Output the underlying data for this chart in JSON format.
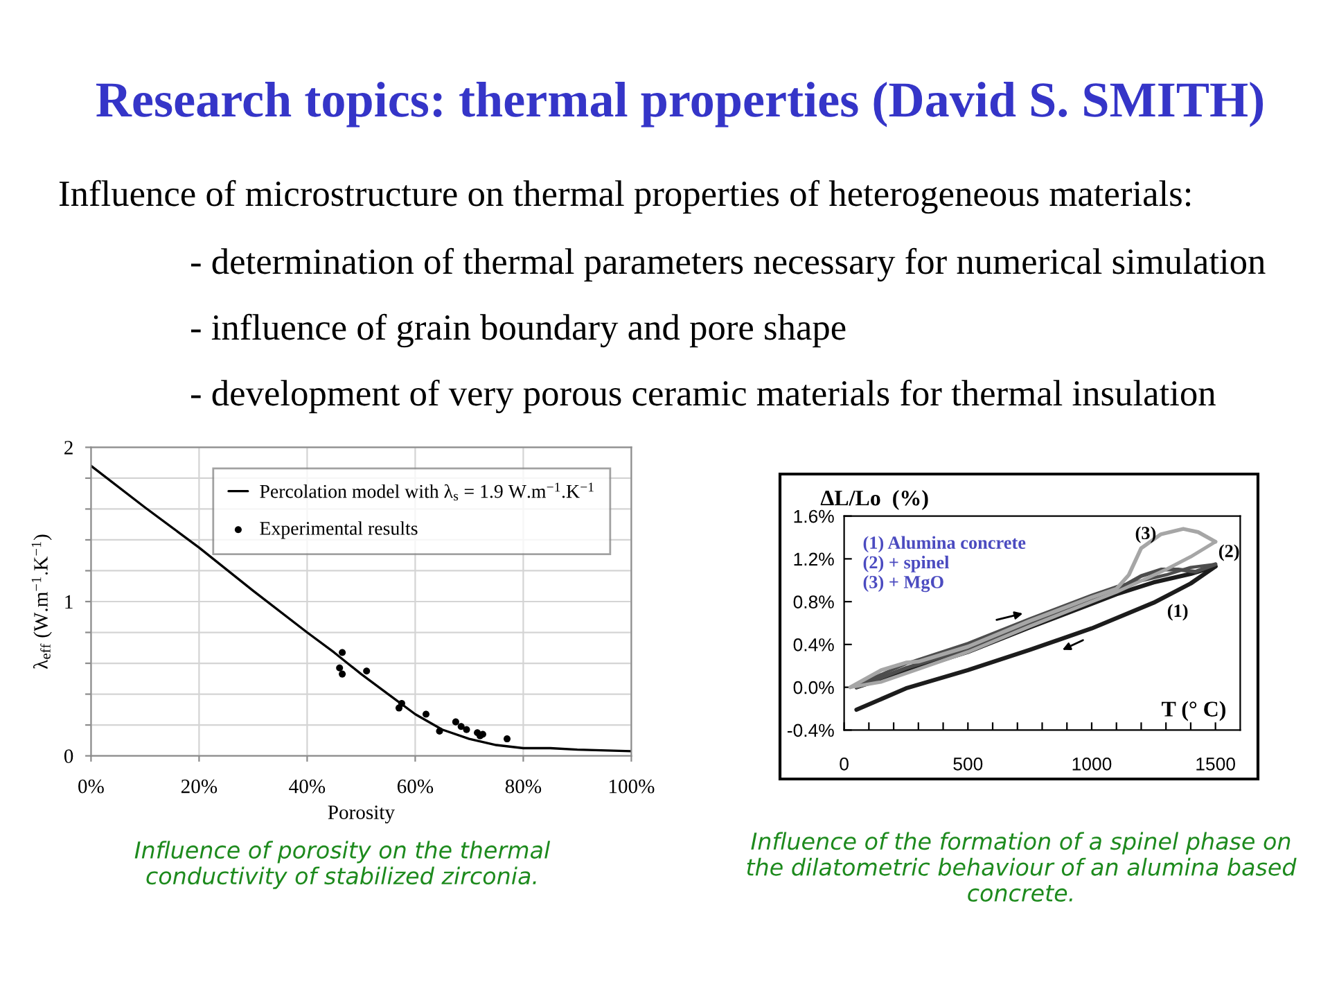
{
  "chart_data": [
    {
      "type": "line",
      "title": "Research topics: thermal properties (David S. SMITH)",
      "xlabel": "Porosity",
      "ylabel": "λ$_{eff}$ (W.m$^{−1}$.K$^{−1}$)",
      "annotations": [
        "Influence of microstructure on thermal properties of heterogeneous materials:",
        "- determination of thermal parameters necessary for numerical simulation",
        "- influence of grain boundary and pore shape",
        "- development of very porous ceramic materials for thermal insulation",
        "Influence of porosity on the thermal\nconductivity of stabilized zirconia."
      ],
      "series": [
        {
          "name": "Percolation model with λ$_{s}$ = 1.9 W.m$^{−1}$.K$^{−1}$",
          "type": "line",
          "color": "#000000",
          "x": [
            0,
            10,
            20,
            30,
            40,
            45,
            50,
            55,
            60,
            65,
            70,
            75,
            80,
            85,
            90,
            100
          ],
          "values": [
            1.88,
            1.61,
            1.35,
            1.07,
            0.8,
            0.67,
            0.53,
            0.4,
            0.27,
            0.17,
            0.11,
            0.07,
            0.05,
            0.05,
            0.04,
            0.03
          ]
        },
        {
          "name": "Experimental results",
          "type": "scatter",
          "marker": "circle",
          "color": "#000000",
          "x": [
            46.5,
            46,
            46.5,
            51,
            57,
            57.5,
            62,
            64.5,
            67.5,
            68.5,
            69.5,
            71.5,
            72,
            72.5,
            77
          ],
          "values": [
            0.67,
            0.57,
            0.53,
            0.55,
            0.31,
            0.34,
            0.27,
            0.16,
            0.22,
            0.19,
            0.17,
            0.15,
            0.13,
            0.14,
            0.11
          ]
        }
      ],
      "xlim": [
        0,
        100
      ],
      "ylim": [
        0,
        2
      ],
      "xticks": [
        {
          "value": 0,
          "label": "0%"
        },
        {
          "value": 20,
          "label": "20%"
        },
        {
          "value": 40,
          "label": "40%"
        },
        {
          "value": 60,
          "label": "60%"
        },
        {
          "value": 80,
          "label": "80%"
        },
        {
          "value": 100,
          "label": "100%"
        }
      ],
      "yticks": [
        0,
        {
          "value": 0.2,
          "label": null
        },
        {
          "value": 0.4,
          "label": null
        },
        {
          "value": 0.6,
          "label": null
        },
        {
          "value": 0.8,
          "label": null
        },
        1,
        {
          "value": 1.2,
          "label": null
        },
        {
          "value": 1.4,
          "label": null
        },
        {
          "value": 1.6,
          "label": null
        },
        {
          "value": 1.8,
          "label": null
        },
        2
      ],
      "grid": true,
      "legend": "top right"
    },
    {
      "type": "line",
      "xlabel": "T (° C)",
      "ylabel": "ΔL/Lo  (%)",
      "annotations": [
        "(1) Alumina concrete",
        "(2) + spinel",
        "(3) + MgO",
        "Influence of the formation of a spinel phase on\nthe dilatometric behaviour of an alumina based\nconcrete."
      ],
      "series": [
        {
          "color": "#1c1c1c",
          "x": [
            50,
            250,
            500,
            750,
            1000,
            1100,
            1250,
            1400,
            1500
          ],
          "values": [
            0.0,
            0.15,
            0.33,
            0.56,
            0.78,
            0.87,
            0.98,
            1.06,
            1.13
          ]
        },
        {
          "name": "(1)",
          "color": "#1c1c1c",
          "x": [
            50,
            250,
            500,
            750,
            1000,
            1250,
            1400,
            1500
          ],
          "values": [
            -0.21,
            -0.01,
            0.16,
            0.35,
            0.55,
            0.79,
            0.97,
            1.13
          ]
        },
        {
          "name": "(2)",
          "color": "#4d4d4d",
          "x": [
            50,
            250,
            500,
            750,
            1000,
            1100,
            1200,
            1280,
            1350,
            1420,
            1500
          ],
          "values": [
            0.0,
            0.18,
            0.36,
            0.6,
            0.82,
            0.91,
            1.04,
            1.1,
            1.1,
            1.08,
            1.15
          ]
        },
        {
          "color": "#4d4d4d",
          "x": [
            50,
            250,
            500,
            750,
            1000,
            1100,
            1300,
            1400,
            1500
          ],
          "values": [
            0.02,
            0.22,
            0.41,
            0.64,
            0.86,
            0.94,
            1.05,
            1.12,
            1.15
          ]
        },
        {
          "name": "(3)",
          "color": "#a6a6a6",
          "x": [
            25,
            150,
            250,
            300,
            500,
            750,
            1000,
            1100,
            1150,
            1200,
            1280,
            1370,
            1430,
            1500
          ],
          "values": [
            0.0,
            0.16,
            0.23,
            0.24,
            0.38,
            0.62,
            0.84,
            0.92,
            1.05,
            1.3,
            1.43,
            1.48,
            1.45,
            1.36
          ]
        },
        {
          "color": "#a6a6a6",
          "x": [
            25,
            150,
            300,
            500,
            750,
            1000,
            1100,
            1300,
            1400,
            1500
          ],
          "values": [
            0.0,
            0.05,
            0.17,
            0.33,
            0.57,
            0.8,
            0.89,
            1.1,
            1.22,
            1.36
          ]
        }
      ],
      "xlim": [
        0,
        1600
      ],
      "ylim": [
        -0.4,
        1.6
      ],
      "xticks": [
        0,
        {
          "value": 100,
          "label": null
        },
        {
          "value": 200,
          "label": null
        },
        {
          "value": 300,
          "label": null
        },
        {
          "value": 400,
          "label": null
        },
        500,
        {
          "value": 600,
          "label": null
        },
        {
          "value": 700,
          "label": null
        },
        {
          "value": 800,
          "label": null
        },
        {
          "value": 900,
          "label": null
        },
        1000,
        {
          "value": 1100,
          "label": null
        },
        {
          "value": 1200,
          "label": null
        },
        {
          "value": 1300,
          "label": null
        },
        {
          "value": 1400,
          "label": null
        },
        1500
      ],
      "yticks": [
        {
          "value": -0.4,
          "label": "-0.4%"
        },
        {
          "value": 0,
          "label": "0.0%"
        },
        {
          "value": 0.4,
          "label": "0.4%"
        },
        {
          "value": 0.8,
          "label": "0.8%"
        },
        {
          "value": 1.2,
          "label": "1.2%"
        },
        {
          "value": 1.6,
          "label": "1.6%"
        }
      ]
    }
  ]
}
